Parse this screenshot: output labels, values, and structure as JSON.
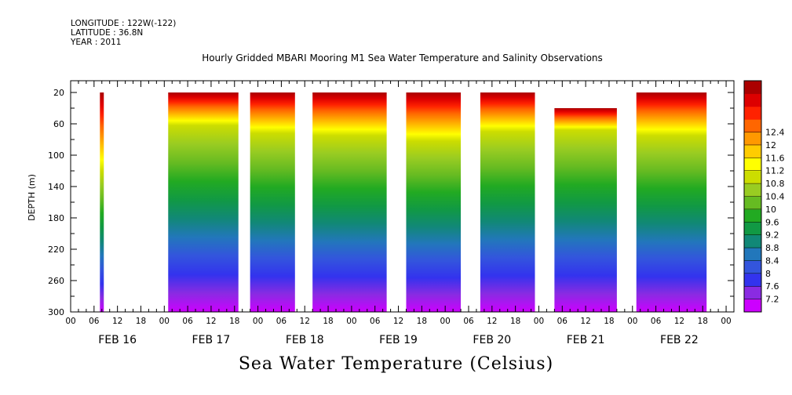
{
  "meta": {
    "longitude": "LONGITUDE : 122W(-122)",
    "latitude": "LATITUDE : 36.8N",
    "year": "YEAR : 2011"
  },
  "chart_data": {
    "type": "heatmap",
    "title": "Hourly Gridded MBARI Mooring M1 Sea Water Temperature and Salinity Observations",
    "ylabel": "DEPTH (m)",
    "colorbar_label": "Sea Water Temperature (Celsius)",
    "x_unit": "hours since FEB 16 00:00",
    "xlim": [
      0,
      170
    ],
    "ylim": [
      300,
      5
    ],
    "y_ticks": [
      20,
      60,
      100,
      140,
      180,
      220,
      260,
      300
    ],
    "x_tick_labels": [
      "00",
      "06",
      "12",
      "18",
      "00",
      "06",
      "12",
      "18",
      "00",
      "06",
      "12",
      "18",
      "00",
      "06",
      "12",
      "18",
      "00",
      "06",
      "12",
      "18",
      "00",
      "06",
      "12",
      "18",
      "00",
      "06",
      "12",
      "18",
      "00"
    ],
    "day_labels": [
      "FEB 16",
      "FEB 17",
      "FEB 18",
      "FEB 19",
      "FEB 20",
      "FEB 21",
      "FEB 22"
    ],
    "color_levels": [
      7.2,
      7.6,
      8,
      8.4,
      8.8,
      9.2,
      9.6,
      10,
      10.4,
      10.8,
      11.2,
      11.6,
      12,
      12.4
    ],
    "color_level_labels": [
      "7.2",
      "7.6",
      "8",
      "8.4",
      "8.8",
      "9.2",
      "9.6",
      "10",
      "10.4",
      "10.8",
      "11.2",
      "11.6",
      "12",
      "12.4"
    ],
    "colors": [
      "#cc00ff",
      "#8a2be2",
      "#3333ee",
      "#3355dd",
      "#2277bb",
      "#118877",
      "#119944",
      "#22aa22",
      "#66bb22",
      "#99cc22",
      "#ccdd00",
      "#ffff00",
      "#ffcc00",
      "#ff9900",
      "#ff6600",
      "#ff2200",
      "#dd0000",
      "#aa0000"
    ],
    "data_blocks": [
      {
        "t_start": 7.5,
        "t_end": 8.5,
        "top_depth": 20,
        "thermocline_depth": 120
      },
      {
        "t_start": 25,
        "t_end": 43,
        "top_depth": 20,
        "thermocline_depth": 62
      },
      {
        "t_start": 46,
        "t_end": 57.5,
        "top_depth": 20,
        "thermocline_depth": 72
      },
      {
        "t_start": 62,
        "t_end": 81,
        "top_depth": 20,
        "thermocline_depth": 75
      },
      {
        "t_start": 86,
        "t_end": 100,
        "top_depth": 20,
        "thermocline_depth": 82
      },
      {
        "t_start": 105,
        "t_end": 119,
        "top_depth": 20,
        "thermocline_depth": 70
      },
      {
        "t_start": 124,
        "t_end": 140,
        "top_depth": 40,
        "thermocline_depth": 68
      },
      {
        "t_start": 145,
        "t_end": 163,
        "top_depth": 20,
        "thermocline_depth": 75
      }
    ]
  }
}
